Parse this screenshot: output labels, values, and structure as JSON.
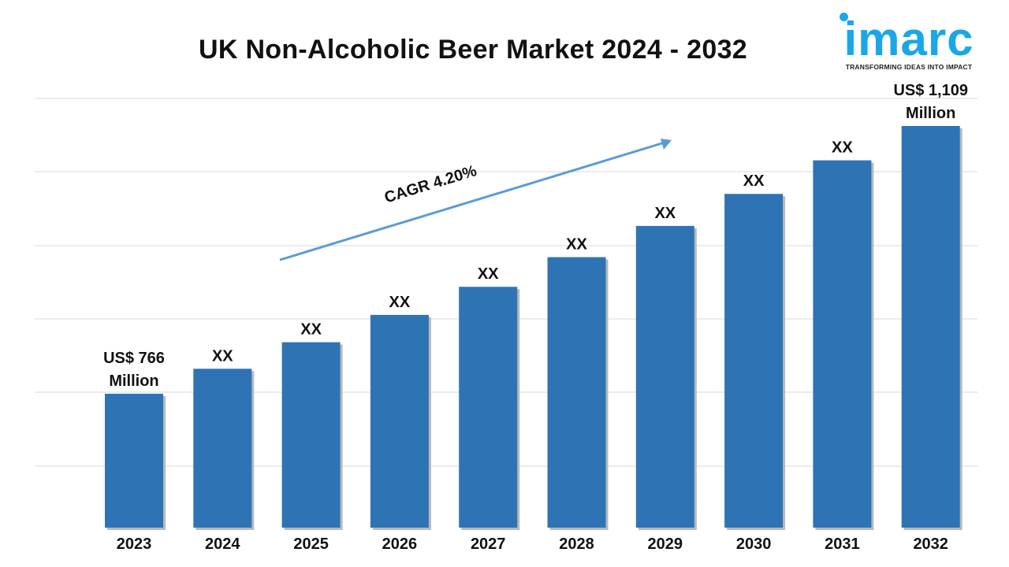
{
  "title": "UK Non-Alcoholic Beer Market 2024 - 2032",
  "logo": {
    "name": "imarc",
    "tagline": "TRANSFORMING IDEAS INTO IMPACT",
    "color": "#1aa7e8"
  },
  "chart_data": {
    "type": "bar",
    "title": "UK Non-Alcoholic Beer Market 2024 - 2032",
    "categories": [
      "2023",
      "2024",
      "2025",
      "2026",
      "2027",
      "2028",
      "2029",
      "2030",
      "2031",
      "2032"
    ],
    "values": [
      766,
      798,
      832,
      867,
      903,
      941,
      981,
      1022,
      1065,
      1109
    ],
    "data_labels": [
      [
        "US$  766",
        "Million"
      ],
      [
        "XX"
      ],
      [
        "XX"
      ],
      [
        "XX"
      ],
      [
        "XX"
      ],
      [
        "XX"
      ],
      [
        "XX"
      ],
      [
        "XX"
      ],
      [
        "XX"
      ],
      [
        "US$ 1,109",
        "Million"
      ]
    ],
    "annotation": "CAGR 4.20%",
    "bar_color": "#2e74b5",
    "arrow_color": "#5b9bd5",
    "grid": true,
    "legend": "none"
  }
}
